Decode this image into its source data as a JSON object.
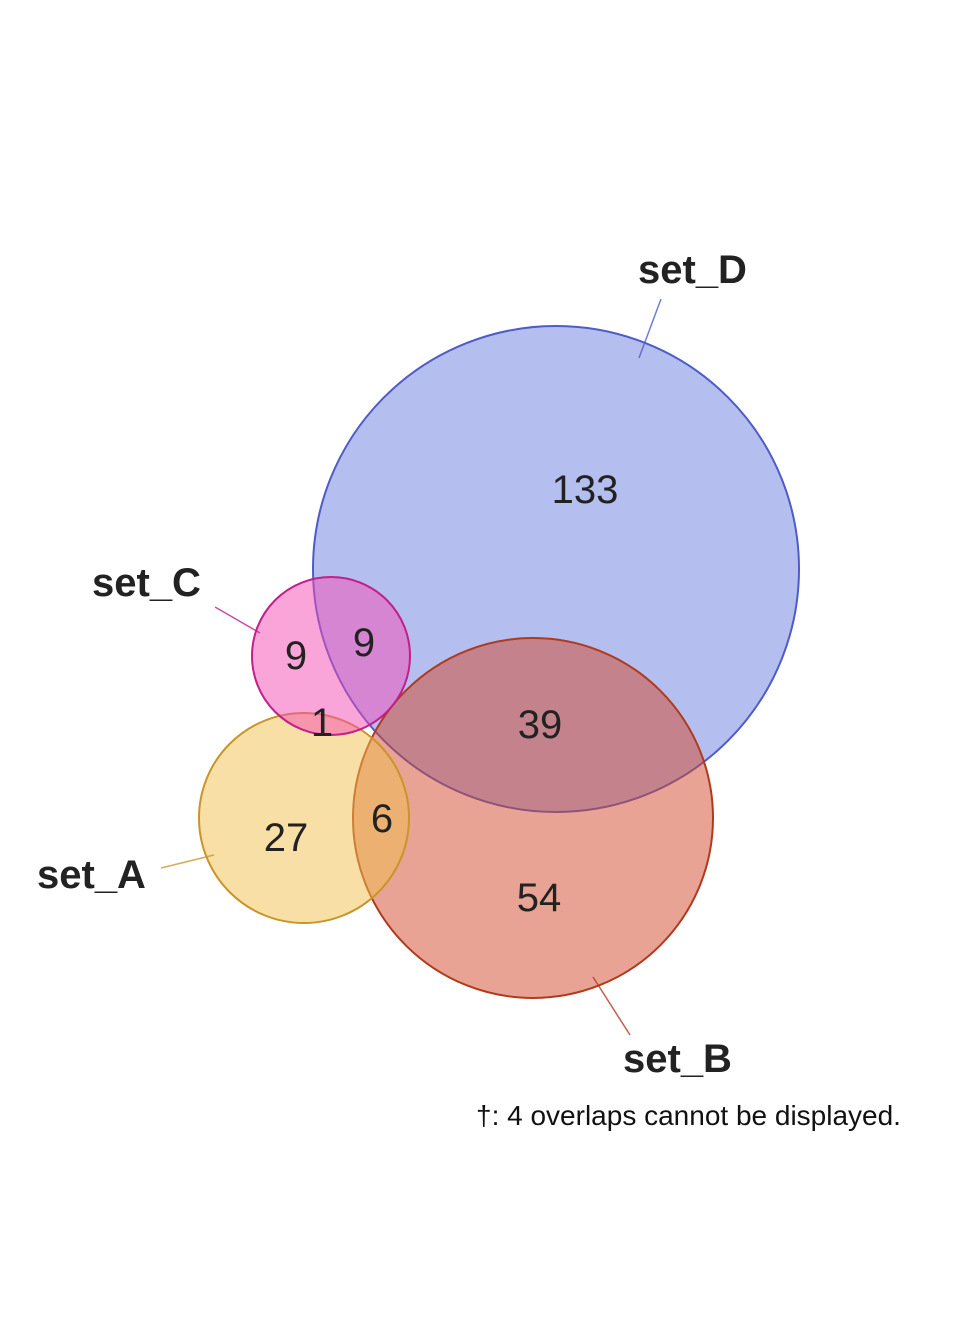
{
  "chart_data": {
    "type": "venn",
    "sets": [
      {
        "id": "A",
        "name": "set_A",
        "color": "#f0c04e",
        "stroke": "#c9952a"
      },
      {
        "id": "B",
        "name": "set_B",
        "color": "#d4482a",
        "stroke": "#b03a1e"
      },
      {
        "id": "C",
        "name": "set_C",
        "color": "#f54cb4",
        "stroke": "#c21f8a"
      },
      {
        "id": "D",
        "name": "set_D",
        "color": "#6c7fe0",
        "stroke": "#4d5cc7"
      }
    ],
    "region_counts": [
      {
        "region": "C only",
        "value": "9"
      },
      {
        "region": "C and D",
        "value": "9"
      },
      {
        "region": "D only",
        "value": "133"
      },
      {
        "region": "A and C",
        "value": "1"
      },
      {
        "region": "B and D",
        "value": "39"
      },
      {
        "region": "A only",
        "value": "27"
      },
      {
        "region": "A and B",
        "value": "6"
      },
      {
        "region": "B only",
        "value": "54"
      }
    ],
    "footnote": "†: 4 overlaps cannot be displayed."
  }
}
